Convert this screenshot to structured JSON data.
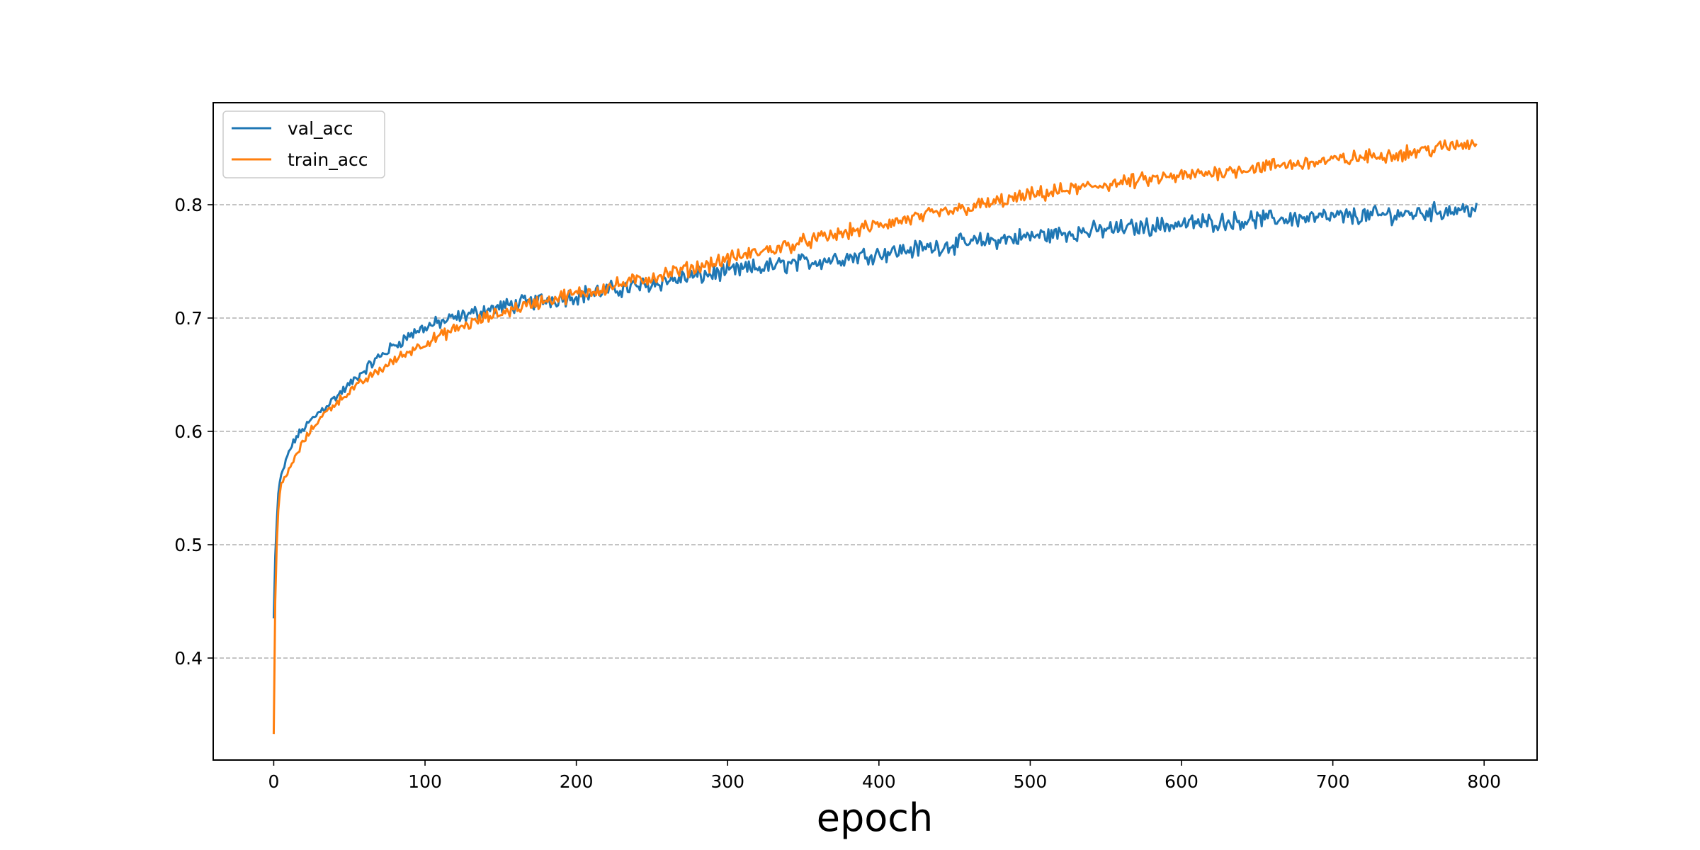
{
  "chart_data": {
    "type": "line",
    "title": "",
    "xlabel": "epoch",
    "ylabel": "",
    "xlim": [
      -40,
      835
    ],
    "ylim": [
      0.31,
      0.89
    ],
    "xticks": [
      0,
      100,
      200,
      300,
      400,
      500,
      600,
      700,
      800
    ],
    "xtick_labels": [
      "0",
      "100",
      "200",
      "300",
      "400",
      "500",
      "600",
      "700",
      "800"
    ],
    "yticks": [
      0.4,
      0.5,
      0.6,
      0.7,
      0.8
    ],
    "ytick_labels": [
      "0.4",
      "0.5",
      "0.6",
      "0.7",
      "0.8"
    ],
    "grid": "y-dashed",
    "legend_position": "top-left",
    "colors": {
      "val_acc": "#1f77b4",
      "train_acc": "#ff7f0e",
      "grid": "#b0b0b0"
    },
    "series": [
      {
        "name": "val_acc",
        "color": "#1f77b4",
        "x": [
          0,
          1,
          2,
          3,
          4,
          5,
          10,
          15,
          20,
          30,
          40,
          50,
          60,
          70,
          80,
          90,
          100,
          120,
          140,
          160,
          180,
          200,
          220,
          240,
          260,
          280,
          300,
          350,
          400,
          450,
          500,
          550,
          600,
          650,
          700,
          750,
          795
        ],
        "y": [
          0.435,
          0.49,
          0.52,
          0.545,
          0.555,
          0.56,
          0.582,
          0.595,
          0.603,
          0.617,
          0.629,
          0.641,
          0.654,
          0.666,
          0.676,
          0.685,
          0.692,
          0.7,
          0.707,
          0.712,
          0.716,
          0.72,
          0.724,
          0.728,
          0.733,
          0.737,
          0.741,
          0.749,
          0.757,
          0.765,
          0.772,
          0.778,
          0.783,
          0.787,
          0.789,
          0.792,
          0.797
        ]
      },
      {
        "name": "train_acc",
        "color": "#ff7f0e",
        "x": [
          0,
          1,
          2,
          3,
          4,
          5,
          10,
          15,
          20,
          30,
          40,
          50,
          60,
          70,
          80,
          90,
          100,
          120,
          140,
          160,
          180,
          200,
          220,
          240,
          260,
          280,
          300,
          350,
          400,
          450,
          500,
          550,
          600,
          650,
          700,
          750,
          795
        ],
        "y": [
          0.333,
          0.45,
          0.5,
          0.53,
          0.545,
          0.552,
          0.566,
          0.579,
          0.592,
          0.611,
          0.624,
          0.635,
          0.645,
          0.654,
          0.663,
          0.671,
          0.678,
          0.69,
          0.7,
          0.709,
          0.716,
          0.721,
          0.727,
          0.733,
          0.739,
          0.745,
          0.752,
          0.767,
          0.782,
          0.795,
          0.808,
          0.818,
          0.825,
          0.833,
          0.839,
          0.846,
          0.855
        ]
      }
    ]
  }
}
